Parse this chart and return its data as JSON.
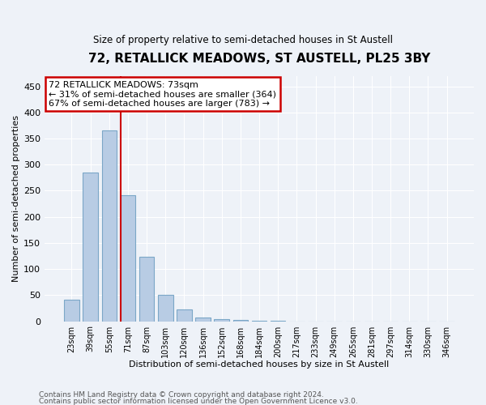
{
  "title": "72, RETALLICK MEADOWS, ST AUSTELL, PL25 3BY",
  "subtitle": "Size of property relative to semi-detached houses in St Austell",
  "xlabel": "Distribution of semi-detached houses by size in St Austell",
  "ylabel": "Number of semi-detached properties",
  "footnote1": "Contains HM Land Registry data © Crown copyright and database right 2024.",
  "footnote2": "Contains public sector information licensed under the Open Government Licence v3.0.",
  "categories": [
    "23sqm",
    "39sqm",
    "55sqm",
    "71sqm",
    "87sqm",
    "103sqm",
    "120sqm",
    "136sqm",
    "152sqm",
    "168sqm",
    "184sqm",
    "200sqm",
    "217sqm",
    "233sqm",
    "249sqm",
    "265sqm",
    "281sqm",
    "297sqm",
    "314sqm",
    "330sqm",
    "346sqm"
  ],
  "values": [
    42,
    285,
    365,
    242,
    123,
    50,
    22,
    7,
    4,
    2,
    1,
    1,
    0,
    0,
    0,
    0,
    0,
    0,
    0,
    0,
    0
  ],
  "bar_color": "#b8cce4",
  "bar_edge_color": "#7ba7c7",
  "highlight_index": 3,
  "highlight_line_color": "#cc0000",
  "property_label": "72 RETALLICK MEADOWS: 73sqm",
  "pct_smaller": "31% of semi-detached houses are smaller (364)",
  "pct_larger": "67% of semi-detached houses are larger (783)",
  "ylim": [
    0,
    470
  ],
  "yticks": [
    0,
    50,
    100,
    150,
    200,
    250,
    300,
    350,
    400,
    450
  ],
  "box_color": "#cc0000",
  "background_color": "#eef2f8",
  "plot_background": "#eef2f8",
  "grid_color": "#ffffff",
  "annotation_line1": "72 RETALLICK MEADOWS: 73sqm",
  "annotation_line2": "← 31% of semi-detached houses are smaller (364)",
  "annotation_line3": "67% of semi-detached houses are larger (783) →"
}
